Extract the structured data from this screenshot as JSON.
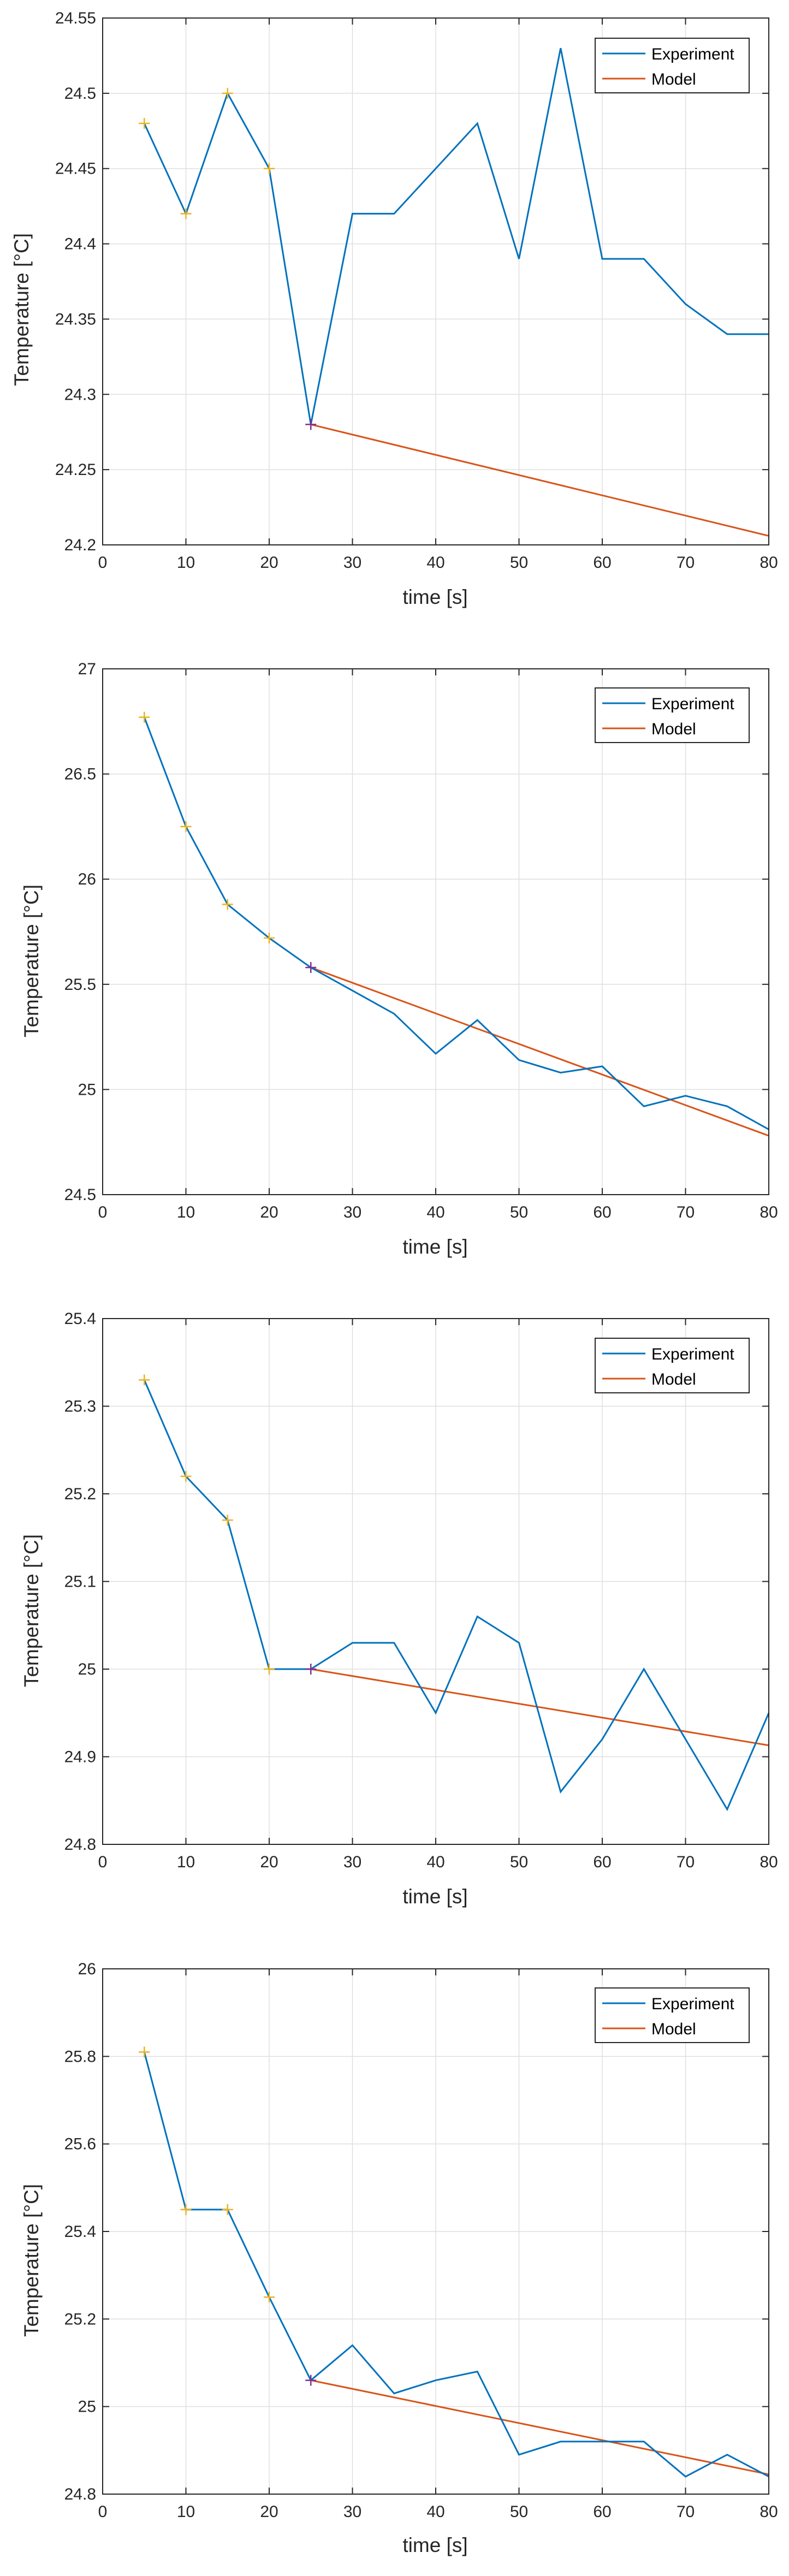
{
  "colors": {
    "experiment": "#0072BD",
    "model": "#D95319",
    "marker_early": "#EDB120",
    "marker_start": "#7E2F8E",
    "grid": "#DFDFDF",
    "axis": "#262626"
  },
  "chart_data": [
    {
      "type": "line",
      "xlabel": "time [s]",
      "ylabel": "Temperature [°C]",
      "xlim": [
        0,
        80
      ],
      "ylim": [
        24.2,
        24.55
      ],
      "xticks": [
        0,
        10,
        20,
        30,
        40,
        50,
        60,
        70,
        80
      ],
      "yticks": [
        24.2,
        24.25,
        24.3,
        24.35,
        24.4,
        24.45,
        24.5,
        24.55
      ],
      "ytick_labels": [
        "24.2",
        "24.25",
        "24.3",
        "24.35",
        "24.4",
        "24.45",
        "24.5",
        "24.55"
      ],
      "legend": [
        "Experiment",
        "Model"
      ],
      "legend_position": "top-right",
      "grid": true,
      "series": [
        {
          "name": "Experiment",
          "x": [
            5,
            10,
            15,
            20,
            25,
            30,
            35,
            40,
            45,
            50,
            55,
            60,
            65,
            70,
            75,
            80
          ],
          "y": [
            24.48,
            24.42,
            24.5,
            24.45,
            24.28,
            24.42,
            24.42,
            24.45,
            24.48,
            24.39,
            24.53,
            24.39,
            24.39,
            24.36,
            24.34,
            24.34
          ]
        },
        {
          "name": "Model",
          "x": [
            25,
            80
          ],
          "y": [
            24.28,
            24.206
          ]
        }
      ],
      "markers": [
        {
          "x": [
            5,
            10,
            15,
            20
          ],
          "y": [
            24.48,
            24.42,
            24.5,
            24.45
          ],
          "kind": "early"
        },
        {
          "x": [
            25
          ],
          "y": [
            24.28
          ],
          "kind": "start"
        }
      ]
    },
    {
      "type": "line",
      "xlabel": "time [s]",
      "ylabel": "Temperature [°C]",
      "xlim": [
        0,
        80
      ],
      "ylim": [
        24.5,
        27
      ],
      "xticks": [
        0,
        10,
        20,
        30,
        40,
        50,
        60,
        70,
        80
      ],
      "yticks": [
        24.5,
        25,
        25.5,
        26,
        26.5,
        27
      ],
      "ytick_labels": [
        "24.5",
        "25",
        "25.5",
        "26",
        "26.5",
        "27"
      ],
      "legend": [
        "Experiment",
        "Model"
      ],
      "legend_position": "top-right",
      "grid": true,
      "series": [
        {
          "name": "Experiment",
          "x": [
            5,
            10,
            15,
            20,
            25,
            30,
            35,
            40,
            45,
            50,
            55,
            60,
            65,
            70,
            75,
            80
          ],
          "y": [
            26.77,
            26.25,
            25.88,
            25.72,
            25.58,
            25.47,
            25.36,
            25.17,
            25.33,
            25.14,
            25.08,
            25.11,
            24.92,
            24.97,
            24.92,
            24.81
          ]
        },
        {
          "name": "Model",
          "x": [
            25,
            80
          ],
          "y": [
            25.58,
            24.78
          ]
        }
      ],
      "markers": [
        {
          "x": [
            5,
            10,
            15,
            20
          ],
          "y": [
            26.77,
            26.25,
            25.88,
            25.72
          ],
          "kind": "early"
        },
        {
          "x": [
            25
          ],
          "y": [
            25.58
          ],
          "kind": "start"
        }
      ]
    },
    {
      "type": "line",
      "xlabel": "time [s]",
      "ylabel": "Temperature [°C]",
      "xlim": [
        0,
        80
      ],
      "ylim": [
        24.8,
        25.4
      ],
      "xticks": [
        0,
        10,
        20,
        30,
        40,
        50,
        60,
        70,
        80
      ],
      "yticks": [
        24.8,
        24.9,
        25,
        25.1,
        25.2,
        25.3,
        25.4
      ],
      "ytick_labels": [
        "24.8",
        "24.9",
        "25",
        "25.1",
        "25.2",
        "25.3",
        "25.4"
      ],
      "legend": [
        "Experiment",
        "Model"
      ],
      "legend_position": "top-right",
      "grid": true,
      "series": [
        {
          "name": "Experiment",
          "x": [
            5,
            10,
            15,
            20,
            25,
            30,
            35,
            40,
            45,
            50,
            55,
            60,
            65,
            70,
            75,
            80
          ],
          "y": [
            25.33,
            25.22,
            25.17,
            25.0,
            25.0,
            25.03,
            25.03,
            24.95,
            25.06,
            25.03,
            24.86,
            24.92,
            25.0,
            24.92,
            24.84,
            24.95
          ]
        },
        {
          "name": "Model",
          "x": [
            25,
            80
          ],
          "y": [
            25.0,
            24.913
          ]
        }
      ],
      "markers": [
        {
          "x": [
            5,
            10,
            15,
            20
          ],
          "y": [
            25.33,
            25.22,
            25.17,
            25.0
          ],
          "kind": "early"
        },
        {
          "x": [
            25
          ],
          "y": [
            25.0
          ],
          "kind": "start"
        }
      ]
    },
    {
      "type": "line",
      "xlabel": "time [s]",
      "ylabel": "Temperature [°C]",
      "xlim": [
        0,
        80
      ],
      "ylim": [
        24.8,
        26
      ],
      "xticks": [
        0,
        10,
        20,
        30,
        40,
        50,
        60,
        70,
        80
      ],
      "yticks": [
        24.8,
        25,
        25.2,
        25.4,
        25.6,
        25.8,
        26
      ],
      "ytick_labels": [
        "24.8",
        "25",
        "25.2",
        "25.4",
        "25.6",
        "25.8",
        "26"
      ],
      "legend": [
        "Experiment",
        "Model"
      ],
      "legend_position": "top-right",
      "grid": true,
      "series": [
        {
          "name": "Experiment",
          "x": [
            5,
            10,
            15,
            20,
            25,
            30,
            35,
            40,
            45,
            50,
            55,
            60,
            65,
            70,
            75,
            80
          ],
          "y": [
            25.81,
            25.45,
            25.45,
            25.25,
            25.06,
            25.14,
            25.03,
            25.06,
            25.08,
            24.89,
            24.92,
            24.92,
            24.92,
            24.84,
            24.89,
            24.84
          ]
        },
        {
          "name": "Model",
          "x": [
            25,
            80
          ],
          "y": [
            25.06,
            24.845
          ]
        }
      ],
      "markers": [
        {
          "x": [
            5,
            10,
            15,
            20
          ],
          "y": [
            25.81,
            25.45,
            25.45,
            25.25
          ],
          "kind": "early"
        },
        {
          "x": [
            25
          ],
          "y": [
            25.06
          ],
          "kind": "start"
        }
      ]
    }
  ]
}
